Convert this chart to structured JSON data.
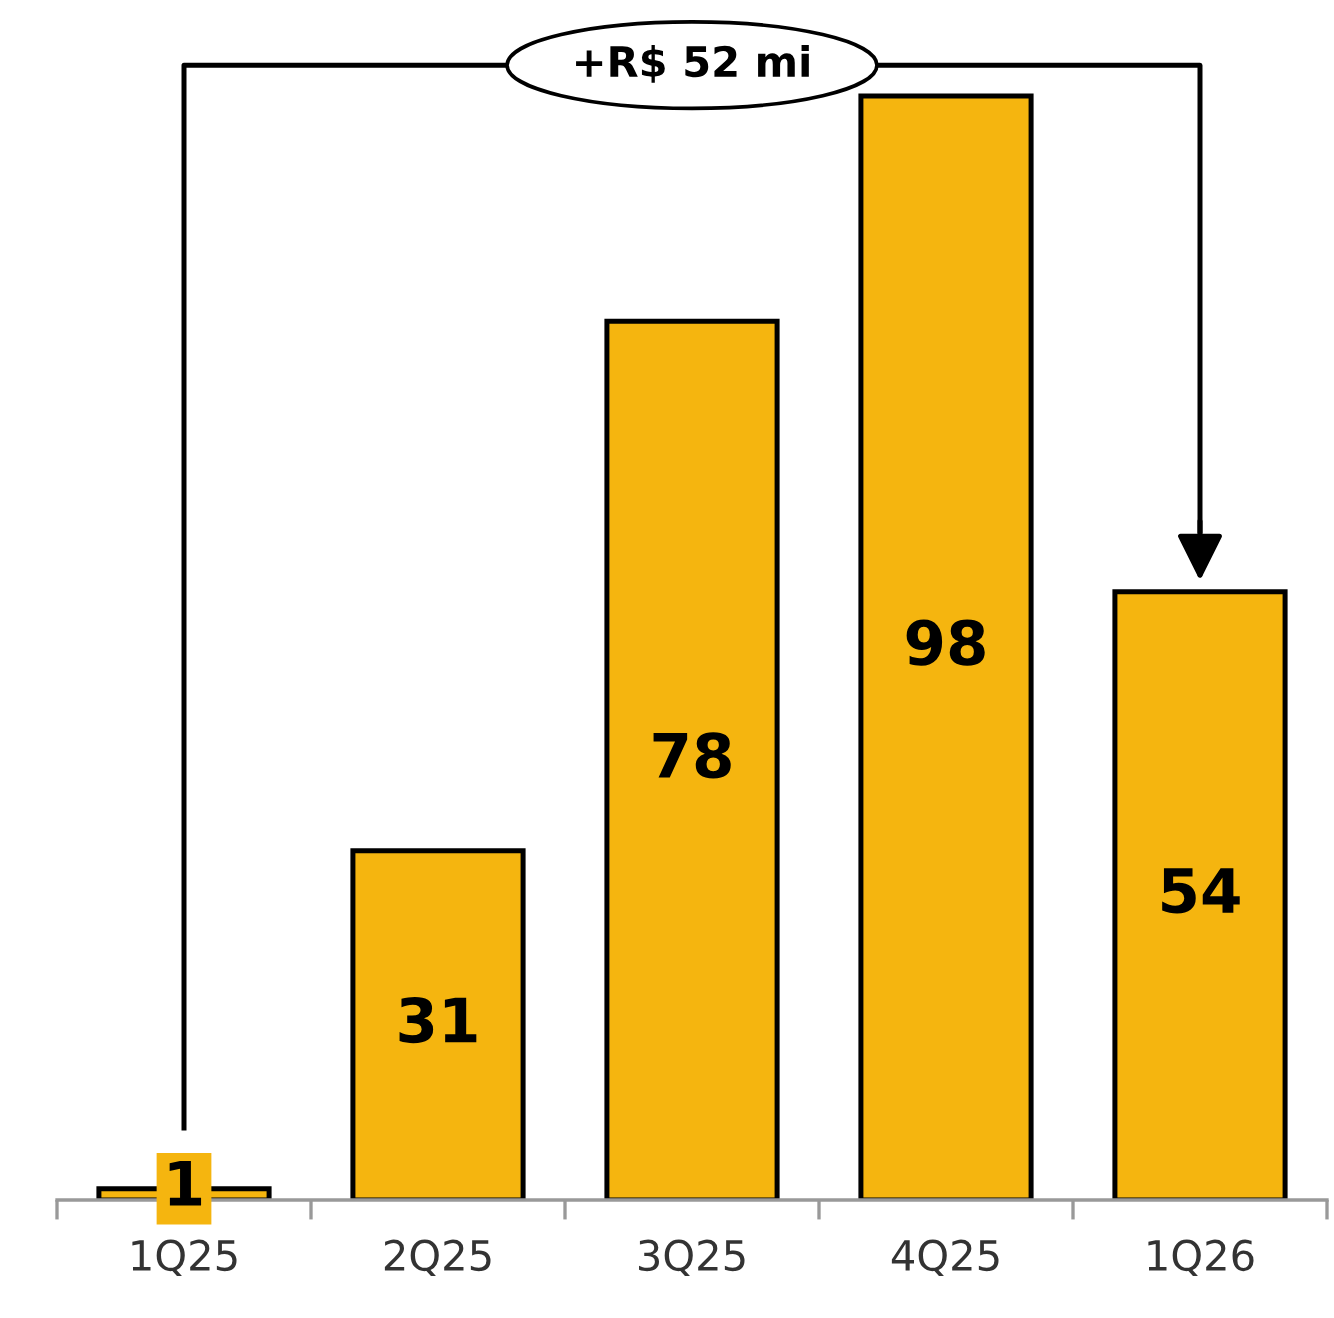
{
  "chart_data": {
    "type": "bar",
    "categories": [
      "1Q25",
      "2Q25",
      "3Q25",
      "4Q25",
      "1Q26"
    ],
    "values": [
      1,
      31,
      78,
      98,
      54
    ],
    "color": "#f5b50f",
    "data_labels": true,
    "grid": false,
    "annotations": [
      "+R$ 52 mi"
    ]
  }
}
